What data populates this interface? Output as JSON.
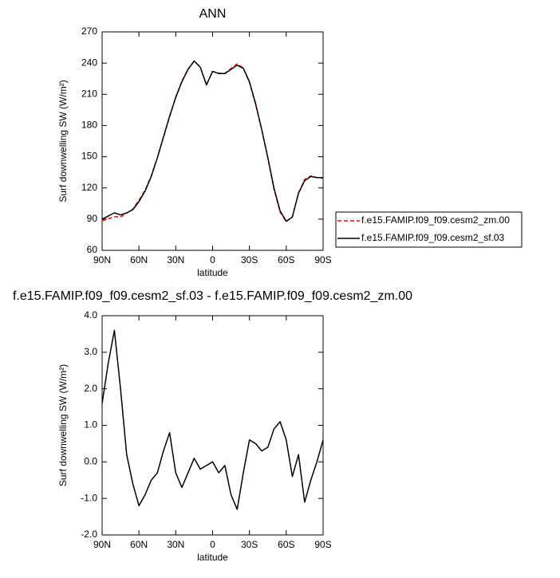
{
  "chart_data": [
    {
      "type": "line",
      "title": "ANN",
      "xlabel": "latitude",
      "ylabel": "Surf downwelling SW (W/m²)",
      "x": [
        90,
        85,
        80,
        75,
        70,
        65,
        60,
        55,
        50,
        45,
        40,
        35,
        30,
        25,
        20,
        15,
        10,
        5,
        0,
        -5,
        -10,
        -15,
        -20,
        -25,
        -30,
        -35,
        -40,
        -45,
        -50,
        -55,
        -60,
        -65,
        -70,
        -75,
        -80,
        -85,
        -90
      ],
      "xlim": [
        90,
        -90
      ],
      "xticks": [
        {
          "value": 90,
          "label": "90N"
        },
        {
          "value": 60,
          "label": "60N"
        },
        {
          "value": 30,
          "label": "30N"
        },
        0,
        {
          "value": -30,
          "label": "30S"
        },
        {
          "value": -60,
          "label": "60S"
        },
        {
          "value": -90,
          "label": "90S"
        }
      ],
      "ylim": [
        60,
        270
      ],
      "yticks": [
        60,
        90,
        120,
        150,
        180,
        210,
        240,
        270
      ],
      "legend": "right",
      "series": [
        {
          "name": "f.e15.FAMIP.f09_f09.cesm2_zm.00",
          "color": "#ff0000",
          "dashed": true,
          "values": [
            88.4,
            90.3,
            92.4,
            92,
            95.8,
            99.6,
            108.2,
            117.9,
            131.5,
            149.3,
            168.7,
            188.2,
            207.3,
            222.7,
            234.3,
            241.9,
            236.2,
            219.1,
            232,
            230.3,
            230.1,
            234.9,
            239.3,
            235.3,
            221.4,
            200.5,
            175.7,
            148.6,
            119.1,
            96.9,
            87.4,
            92.4,
            114.8,
            128.1,
            131.5,
            130,
            129.4
          ]
        },
        {
          "name": "f.e15.FAMIP.f09_f09.cesm2_sf.03",
          "color": "#000000",
          "dashed": false,
          "values": [
            90,
            93,
            96,
            94,
            96,
            99,
            107,
            117,
            131,
            149,
            169,
            189,
            207,
            222,
            234,
            242,
            236,
            219,
            232,
            230,
            230,
            234,
            238,
            235,
            222,
            201,
            176,
            149,
            120,
            98,
            88,
            92,
            115,
            127,
            131,
            130,
            130
          ]
        }
      ]
    },
    {
      "type": "line",
      "title": "f.e15.FAMIP.f09_f09.cesm2_sf.03 - f.e15.FAMIP.f09_f09.cesm2_zm.00",
      "xlabel": "latitude",
      "ylabel": "Surf downwelling SW (W/m²)",
      "x": [
        90,
        85,
        80,
        75,
        70,
        65,
        60,
        55,
        50,
        45,
        40,
        35,
        30,
        25,
        20,
        15,
        10,
        5,
        0,
        -5,
        -10,
        -15,
        -20,
        -25,
        -30,
        -35,
        -40,
        -45,
        -50,
        -55,
        -60,
        -65,
        -70,
        -75,
        -80,
        -85,
        -90
      ],
      "xlim": [
        90,
        -90
      ],
      "xticks": [
        {
          "value": 90,
          "label": "90N"
        },
        {
          "value": 60,
          "label": "60N"
        },
        {
          "value": 30,
          "label": "30N"
        },
        0,
        {
          "value": -30,
          "label": "30S"
        },
        {
          "value": -60,
          "label": "60S"
        },
        {
          "value": -90,
          "label": "90S"
        }
      ],
      "ylim": [
        -2,
        4
      ],
      "yticks": [
        {
          "value": -2,
          "label": "-2.0"
        },
        {
          "value": -1,
          "label": "-1.0"
        },
        {
          "value": 0,
          "label": "0.0"
        },
        {
          "value": 1,
          "label": "1.0"
        },
        {
          "value": 2,
          "label": "2.0"
        },
        {
          "value": 3,
          "label": "3.0"
        },
        {
          "value": 4,
          "label": "4.0"
        }
      ],
      "series": [
        {
          "color": "#000000",
          "dashed": false,
          "values": [
            1.6,
            2.7,
            3.6,
            2.0,
            0.2,
            -0.6,
            -1.2,
            -0.9,
            -0.5,
            -0.3,
            0.3,
            0.8,
            -0.3,
            -0.7,
            -0.3,
            0.1,
            -0.2,
            -0.1,
            0.0,
            -0.3,
            -0.1,
            -0.9,
            -1.3,
            -0.3,
            0.6,
            0.5,
            0.3,
            0.4,
            0.9,
            1.1,
            0.6,
            -0.4,
            0.2,
            -1.1,
            -0.5,
            0.0,
            0.6
          ]
        }
      ]
    }
  ]
}
